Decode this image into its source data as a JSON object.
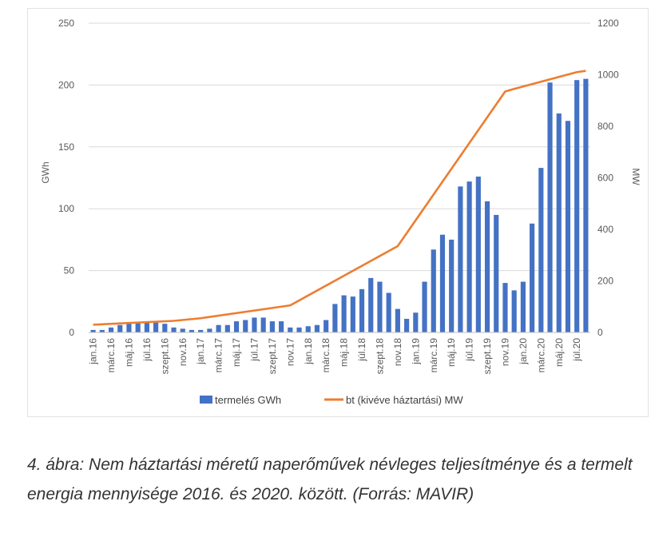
{
  "chart_data": {
    "type": "bar",
    "categories": [
      "jan.16",
      "febr.16",
      "márc.16",
      "ápr.16",
      "máj.16",
      "jún.16",
      "júl.16",
      "aug.16",
      "szept.16",
      "okt.16",
      "nov.16",
      "dec.16",
      "jan.17",
      "febr.17",
      "márc.17",
      "ápr.17",
      "máj.17",
      "jún.17",
      "júl.17",
      "aug.17",
      "szept.17",
      "okt.17",
      "nov.17",
      "dec.17",
      "jan.18",
      "febr.18",
      "márc.18",
      "ápr.18",
      "máj.18",
      "jún.18",
      "júl.18",
      "aug.18",
      "szept.18",
      "okt.18",
      "nov.18",
      "dec.18",
      "jan.19",
      "febr.19",
      "márc.19",
      "ápr.19",
      "máj.19",
      "jún.19",
      "júl.19",
      "aug.19",
      "szept.19",
      "okt.19",
      "nov.19",
      "dec.19",
      "jan.20",
      "febr.20",
      "márc.20",
      "ápr.20",
      "máj.20",
      "jún.20",
      "júl.20",
      "aug.20"
    ],
    "visible_tick_labels": [
      "jan.16",
      "márc.16",
      "máj.16",
      "júl.16",
      "szept.16",
      "nov.16",
      "jan.17",
      "márc.17",
      "máj.17",
      "júl.17",
      "szept.17",
      "nov.17",
      "jan.18",
      "márc.18",
      "máj.18",
      "júl.18",
      "szept.18",
      "nov.18",
      "jan.19",
      "márc.19",
      "máj.19",
      "júl.19",
      "szept.19",
      "nov.19",
      "jan.20",
      "márc.20",
      "máj.20",
      "júl.20"
    ],
    "series": [
      {
        "name": "termelés GWh",
        "type": "bar",
        "axis": "left",
        "color": "#4472c4",
        "values": [
          2,
          2,
          4,
          6,
          7,
          8,
          8,
          8,
          7,
          4,
          3,
          2,
          2,
          3,
          6,
          6,
          9,
          10,
          12,
          12,
          9,
          9,
          4,
          4,
          5,
          6,
          10,
          23,
          30,
          29,
          35,
          44,
          41,
          32,
          19,
          11,
          16,
          41,
          67,
          79,
          75,
          118,
          122,
          126,
          106,
          95,
          40,
          34,
          41,
          88,
          133,
          202,
          177,
          171,
          204,
          205
        ]
      },
      {
        "name": "bt (kivéve háztartási) MW",
        "type": "line",
        "axis": "right",
        "color": "#ed7d31",
        "x": [
          "jan.16",
          "okt.16",
          "jan.17",
          "szept.17",
          "nov.17",
          "nov.18",
          "nov.19",
          "dec.19",
          "júl.20",
          "aug.20"
        ],
        "values": [
          30,
          45,
          55,
          95,
          105,
          335,
          935,
          945,
          1010,
          1015
        ]
      }
    ],
    "ylim": [
      0,
      250
    ],
    "y_ticks": [
      "0",
      "50",
      "100",
      "150",
      "200",
      "250"
    ],
    "ylabel": "GWh",
    "y2lim": [
      0,
      1200
    ],
    "y2_ticks": [
      "0",
      "200",
      "400",
      "600",
      "800",
      "1000",
      "1200"
    ],
    "y2label": "MW",
    "legend_position": "bottom",
    "grid": "horizontal"
  },
  "caption": "4. ábra: Nem háztartási méretű naperőművek névleges teljesítménye és a termelt energia mennyisége 2016. és 2020. között. (Forrás: MAVIR)"
}
